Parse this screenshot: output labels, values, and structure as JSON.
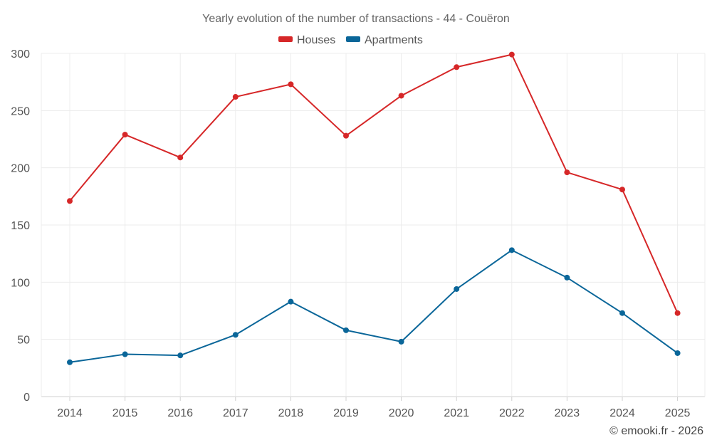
{
  "chart_data": {
    "type": "line",
    "title": "Yearly evolution of the number of transactions - 44 - Couëron",
    "xlabel": "",
    "ylabel": "",
    "categories": [
      "2014",
      "2015",
      "2016",
      "2017",
      "2018",
      "2019",
      "2020",
      "2021",
      "2022",
      "2023",
      "2024",
      "2025"
    ],
    "ylim": [
      0,
      300
    ],
    "yticks": [
      0,
      50,
      100,
      150,
      200,
      250,
      300
    ],
    "grid": true,
    "legend_position": "top-center",
    "series": [
      {
        "name": "Houses",
        "color": "#d62728",
        "values": [
          171,
          229,
          209,
          262,
          273,
          228,
          263,
          288,
          299,
          196,
          181,
          73
        ]
      },
      {
        "name": "Apartments",
        "color": "#0a6699",
        "values": [
          30,
          37,
          36,
          54,
          83,
          58,
          48,
          94,
          128,
          104,
          73,
          38
        ]
      }
    ],
    "credit": "© emooki.fr - 2026"
  }
}
